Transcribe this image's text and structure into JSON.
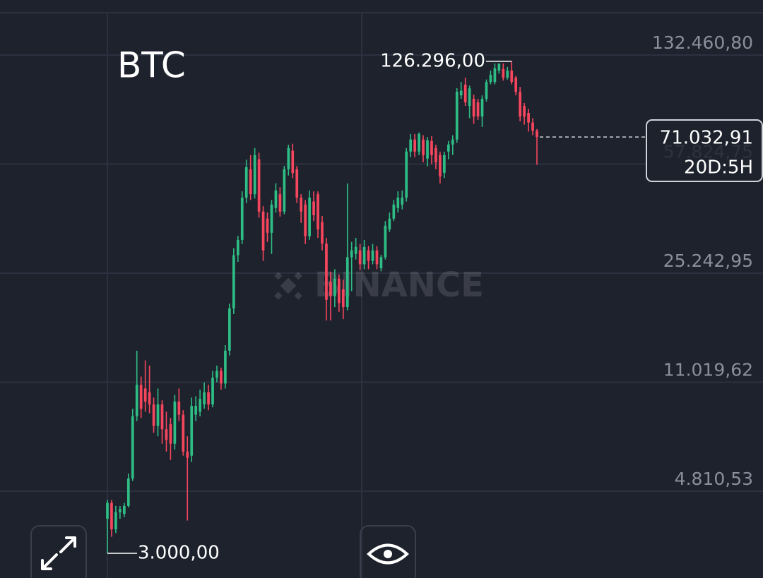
{
  "chart_data": {
    "type": "candlestick",
    "title": "BTC",
    "watermark": "BINANCE",
    "log_scale": true,
    "grid": true,
    "up_color": "#2ebd85",
    "down_color": "#f6465d",
    "ylim": [
      2486,
      201290
    ],
    "yticks": [
      {
        "value": 132460.8,
        "label": "132.460,80"
      },
      {
        "value": 57824.75,
        "label": "57.824,75"
      },
      {
        "value": 25242.95,
        "label": "25.242,95"
      },
      {
        "value": 11019.62,
        "label": "11.019,62"
      },
      {
        "value": 4810.53,
        "label": "4.810,53"
      }
    ],
    "max_label": "126.296,00",
    "min_label": "3.000,00",
    "last_price": {
      "value": 71032.91,
      "label": "71.032,91"
    },
    "countdown": "20D:5H",
    "open": [
      3900,
      4400,
      3600,
      4100,
      4050,
      4300,
      5300,
      8500,
      10800,
      10500,
      10200,
      9300,
      7900,
      9300,
      7700,
      8000,
      6900,
      9500,
      8600,
      6500,
      6300,
      8600,
      8800,
      9300,
      10200,
      9300,
      11400,
      12000,
      10900,
      14000,
      19300,
      28900,
      32500,
      44800,
      55600,
      46000,
      60000,
      40300,
      38200,
      34300,
      41400,
      46000,
      40300,
      55600,
      64000,
      55600,
      44800,
      42500,
      33400,
      43500,
      46000,
      37200,
      31600,
      23600,
      21200,
      24200,
      22300,
      19500,
      28500,
      29200,
      30000,
      27000,
      30000,
      27700,
      30000,
      26200,
      28500,
      35200,
      38200,
      41400,
      42500,
      44800,
      63600,
      69700,
      63600,
      69700,
      60300,
      68900,
      65300,
      61900,
      54100,
      63600,
      67100,
      69700,
      97500,
      105800,
      90000,
      95000,
      92500,
      83000,
      95000,
      107900,
      107900,
      117700,
      119000,
      111600,
      117700,
      111600,
      100200,
      90000,
      85300,
      79300,
      74500
    ],
    "high": [
      4500,
      4500,
      4300,
      4300,
      4400,
      5500,
      9000,
      14000,
      11500,
      13000,
      12500,
      9800,
      10500,
      9600,
      8800,
      8400,
      10000,
      10500,
      8900,
      7300,
      9800,
      9900,
      10400,
      11000,
      10800,
      12000,
      12500,
      12300,
      14600,
      20000,
      30500,
      33500,
      47000,
      59800,
      61900,
      65300,
      63000,
      42000,
      40000,
      44000,
      50000,
      48500,
      57000,
      67000,
      67500,
      57000,
      46000,
      44000,
      47300,
      47000,
      47000,
      39000,
      33000,
      25500,
      26000,
      25000,
      24000,
      49900,
      32000,
      33000,
      31500,
      32500,
      31000,
      31500,
      31000,
      29000,
      37500,
      40000,
      44000,
      47000,
      47300,
      65300,
      72700,
      72700,
      73500,
      72000,
      71000,
      71500,
      67000,
      63600,
      63500,
      68900,
      72000,
      103000,
      108000,
      111600,
      105000,
      98000,
      95000,
      97500,
      110000,
      117700,
      124200,
      124200,
      124200,
      121000,
      126296,
      113000,
      104000,
      92000,
      88000,
      82000,
      75500
    ],
    "low": [
      3000,
      3400,
      3500,
      3900,
      3950,
      4250,
      5200,
      8200,
      8400,
      8800,
      8700,
      7500,
      7300,
      6900,
      6500,
      6100,
      6600,
      8200,
      6300,
      3850,
      6000,
      8200,
      8500,
      9000,
      8900,
      9100,
      11000,
      10400,
      10500,
      13500,
      18500,
      27500,
      31500,
      43000,
      44000,
      44500,
      38500,
      27700,
      32000,
      29200,
      40000,
      38800,
      39500,
      53000,
      52000,
      43000,
      37000,
      31500,
      32500,
      37500,
      33000,
      30000,
      17600,
      17600,
      19500,
      18800,
      17800,
      19000,
      22000,
      28000,
      25800,
      26000,
      26000,
      27000,
      26000,
      25600,
      28000,
      34500,
      37500,
      40000,
      41000,
      43500,
      61000,
      61000,
      61900,
      58600,
      56800,
      57800,
      55600,
      49900,
      52000,
      60000,
      62000,
      68000,
      95000,
      90000,
      82000,
      78500,
      80900,
      76700,
      93000,
      106000,
      106000,
      115000,
      109000,
      110000,
      106000,
      97500,
      80000,
      78000,
      74000,
      72000,
      57500
    ],
    "close": [
      4400,
      3600,
      4100,
      4200,
      4300,
      5300,
      8500,
      10800,
      9000,
      9500,
      9300,
      7900,
      9300,
      7700,
      7100,
      6900,
      9500,
      8600,
      6500,
      6200,
      9200,
      9200,
      9700,
      10200,
      9300,
      11400,
      12000,
      10900,
      14000,
      19300,
      28900,
      32500,
      44800,
      56500,
      46000,
      61900,
      40300,
      30000,
      34300,
      42500,
      47300,
      40300,
      55600,
      65300,
      54000,
      44800,
      40300,
      33400,
      44800,
      39200,
      35200,
      31600,
      20600,
      21200,
      24200,
      20100,
      19500,
      28500,
      30000,
      30800,
      27000,
      30800,
      27700,
      30000,
      27000,
      28500,
      36200,
      38200,
      42500,
      44800,
      44800,
      63600,
      69700,
      63600,
      72700,
      61900,
      69300,
      61900,
      58600,
      52700,
      61900,
      67100,
      69700,
      100200,
      101000,
      92500,
      102800,
      83000,
      83000,
      95000,
      107900,
      113900,
      119800,
      124200,
      111600,
      117700,
      108000,
      100200,
      83000,
      83000,
      79300,
      74500,
      71032.91
    ]
  }
}
